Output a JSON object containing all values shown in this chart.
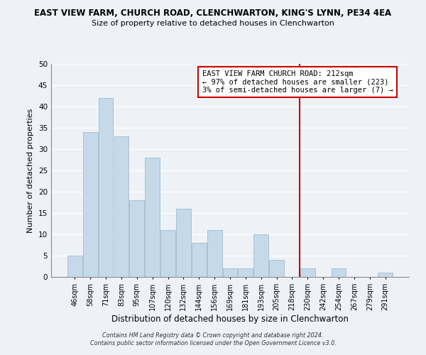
{
  "title": "EAST VIEW FARM, CHURCH ROAD, CLENCHWARTON, KING'S LYNN, PE34 4EA",
  "subtitle": "Size of property relative to detached houses in Clenchwarton",
  "xlabel": "Distribution of detached houses by size in Clenchwarton",
  "ylabel": "Number of detached properties",
  "bar_labels": [
    "46sqm",
    "58sqm",
    "71sqm",
    "83sqm",
    "95sqm",
    "107sqm",
    "120sqm",
    "132sqm",
    "144sqm",
    "156sqm",
    "169sqm",
    "181sqm",
    "193sqm",
    "205sqm",
    "218sqm",
    "230sqm",
    "242sqm",
    "254sqm",
    "267sqm",
    "279sqm",
    "291sqm"
  ],
  "bar_values": [
    5,
    34,
    42,
    33,
    18,
    28,
    11,
    16,
    8,
    11,
    2,
    2,
    10,
    4,
    0,
    2,
    0,
    2,
    0,
    0,
    1
  ],
  "bar_color": "#c6d9e8",
  "bar_edge_color": "#9fbdd0",
  "ylim": [
    0,
    50
  ],
  "yticks": [
    0,
    5,
    10,
    15,
    20,
    25,
    30,
    35,
    40,
    45,
    50
  ],
  "vline_x": 14.5,
  "vline_color": "#cc0000",
  "annotation_title": "EAST VIEW FARM CHURCH ROAD: 212sqm",
  "annotation_line1": "← 97% of detached houses are smaller (223)",
  "annotation_line2": "3% of semi-detached houses are larger (7) →",
  "footer1": "Contains HM Land Registry data © Crown copyright and database right 2024.",
  "footer2": "Contains public sector information licensed under the Open Government Licence v3.0.",
  "background_color": "#eef2f7",
  "grid_color": "#ffffff"
}
